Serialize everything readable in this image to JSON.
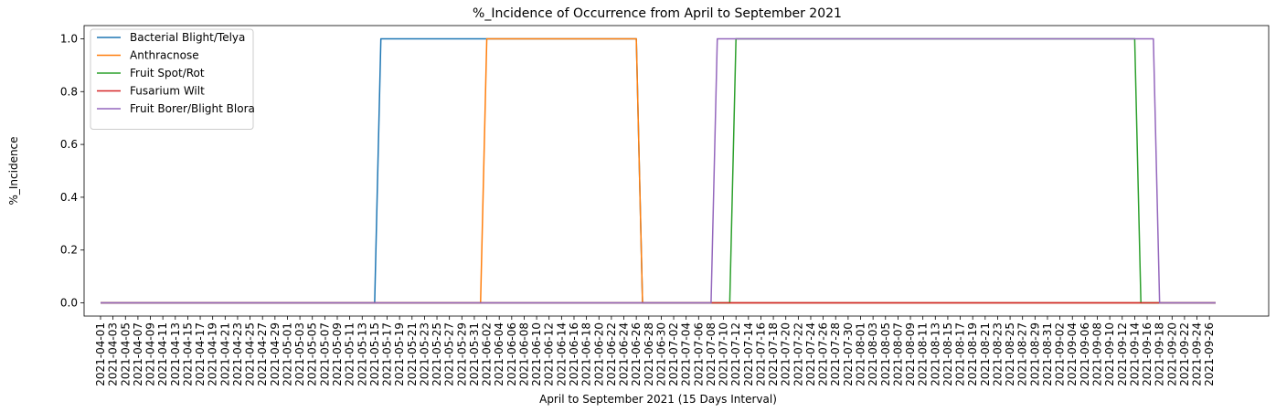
{
  "chart_data": {
    "type": "line",
    "title": "%_Incidence of Occurrence from April to September 2021",
    "xlabel": "April to September 2021 (15 Days Interval)",
    "ylabel": "%_Incidence",
    "ylim": [
      -0.05,
      1.05
    ],
    "yticks": [
      0.0,
      0.2,
      0.4,
      0.6,
      0.8,
      1.0
    ],
    "ytick_labels": [
      "0.0",
      "0.2",
      "0.4",
      "0.6",
      "0.8",
      "1.0"
    ],
    "x_range": [
      "2021-04-01",
      "2021-09-27"
    ],
    "x_tick_step_days": 2,
    "legend_position": "top-left",
    "grid": false,
    "series": [
      {
        "name": "Bacterial Blight/Telya",
        "color": "#1f77b4",
        "points": [
          [
            "2021-04-01",
            0
          ],
          [
            "2021-05-15",
            0
          ],
          [
            "2021-05-16",
            1
          ],
          [
            "2021-06-26",
            1
          ],
          [
            "2021-06-27",
            0
          ],
          [
            "2021-09-27",
            0
          ]
        ]
      },
      {
        "name": "Anthracnose",
        "color": "#ff7f0e",
        "points": [
          [
            "2021-04-01",
            0
          ],
          [
            "2021-06-01",
            0
          ],
          [
            "2021-06-02",
            1
          ],
          [
            "2021-06-26",
            1
          ],
          [
            "2021-06-27",
            0
          ],
          [
            "2021-09-27",
            0
          ]
        ]
      },
      {
        "name": "Fruit Spot/Rot",
        "color": "#2ca02c",
        "points": [
          [
            "2021-04-01",
            0
          ],
          [
            "2021-07-11",
            0
          ],
          [
            "2021-07-12",
            1
          ],
          [
            "2021-09-14",
            1
          ],
          [
            "2021-09-15",
            0
          ],
          [
            "2021-09-27",
            0
          ]
        ]
      },
      {
        "name": "Fusarium Wilt",
        "color": "#d62728",
        "points": [
          [
            "2021-04-01",
            0
          ],
          [
            "2021-09-27",
            0
          ]
        ]
      },
      {
        "name": "Fruit Borer/Blight Blora",
        "color": "#9467bd",
        "points": [
          [
            "2021-04-01",
            0
          ],
          [
            "2021-07-08",
            0
          ],
          [
            "2021-07-09",
            1
          ],
          [
            "2021-09-17",
            1
          ],
          [
            "2021-09-18",
            0
          ],
          [
            "2021-09-27",
            0
          ]
        ]
      }
    ]
  }
}
